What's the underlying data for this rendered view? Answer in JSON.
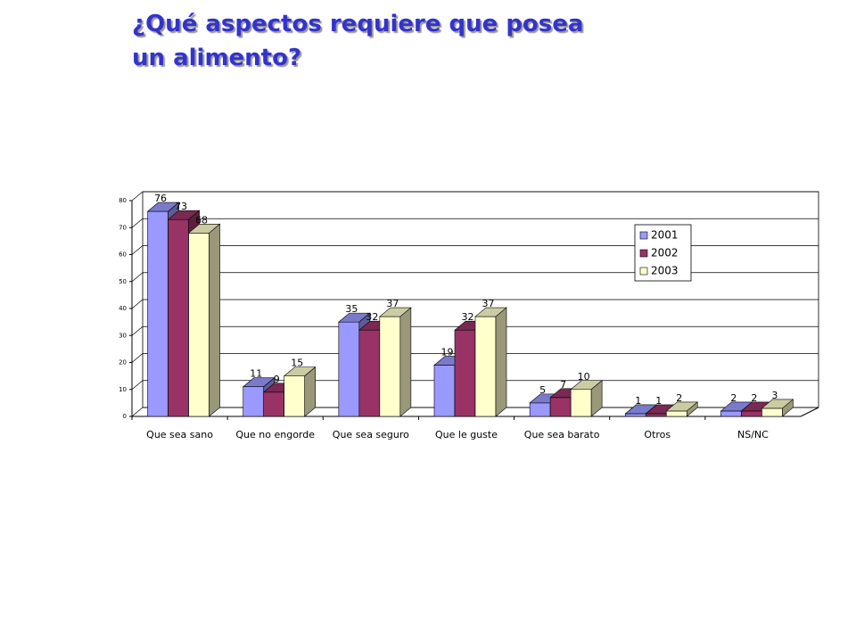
{
  "chart_data": {
    "type": "bar3d",
    "title": "¿Qué aspectos requiere que posea un alimento?",
    "categories": [
      "Que sea sano",
      "Que no engorde",
      "Que sea seguro",
      "Que le guste",
      "Que sea barato",
      "Otros",
      "NS/NC"
    ],
    "series": [
      {
        "name": "2001",
        "color": "#9999ff",
        "values": [
          76,
          11,
          35,
          19,
          5,
          1,
          2
        ]
      },
      {
        "name": "2002",
        "color": "#993366",
        "values": [
          73,
          9,
          32,
          32,
          7,
          1,
          2
        ]
      },
      {
        "name": "2003",
        "color": "#ffffcc",
        "values": [
          68,
          15,
          37,
          37,
          10,
          2,
          3
        ]
      }
    ],
    "ylim": [
      0,
      80
    ],
    "yticks": [
      0,
      10,
      20,
      30,
      40,
      50,
      60,
      70,
      80
    ],
    "grid": true,
    "legend": "right"
  }
}
